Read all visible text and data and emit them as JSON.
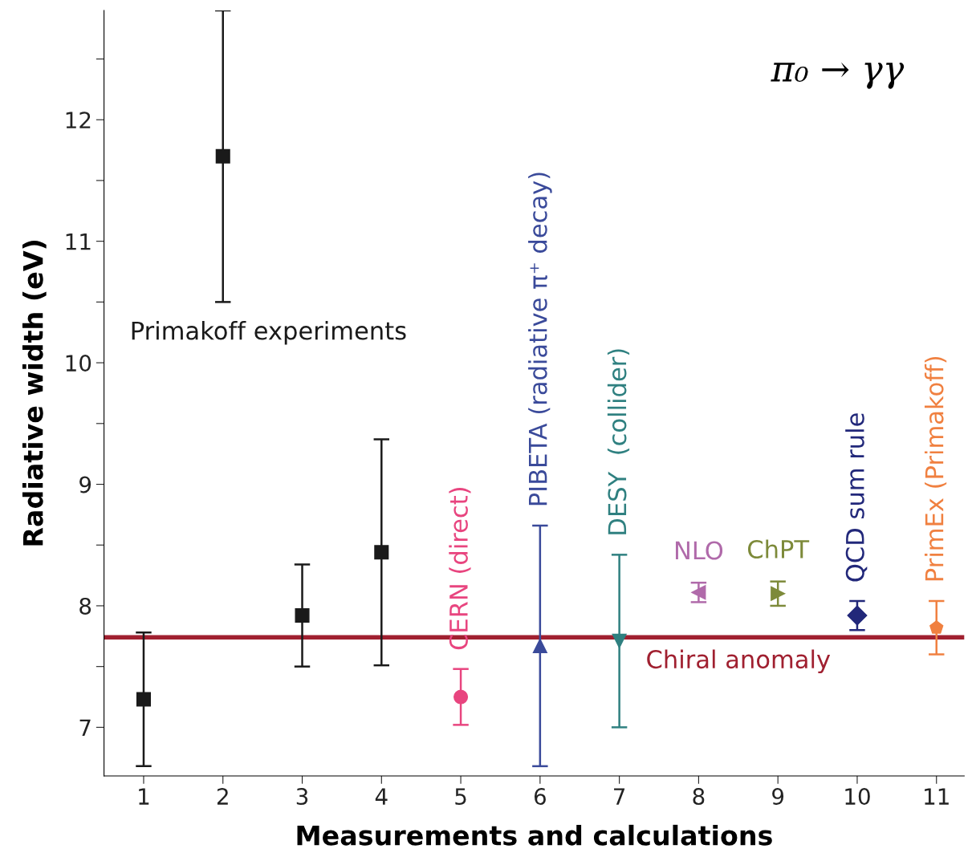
{
  "chart_data": {
    "type": "scatter",
    "xlabel": "Measurements and calculations",
    "ylabel": "Radiative width (eV)",
    "xlim": [
      0.5,
      11.35
    ],
    "xticks": [
      1,
      2,
      3,
      4,
      5,
      6,
      7,
      8,
      9,
      10,
      11
    ],
    "ylim": [
      6.6,
      12.9
    ],
    "yticks": [
      7,
      {
        "value": 7.5,
        "label": null
      },
      8,
      {
        "value": 8.5,
        "label": null
      },
      9,
      {
        "value": 9.5,
        "label": null
      },
      10,
      {
        "value": 10.5,
        "label": null
      },
      11,
      {
        "value": 11.5,
        "label": null
      },
      12,
      {
        "value": 12.5,
        "label": null
      }
    ],
    "grid": false,
    "annotations": [
      "π₀ → γγ"
    ],
    "ref_lines": [
      {
        "axis": "y",
        "value": 7.74,
        "label": "Chiral anomaly",
        "color": "#a02030"
      }
    ],
    "series": [
      {
        "name": "Primakoff experiments",
        "color": "#1a1a1a",
        "marker": "square",
        "x": [
          1,
          2,
          3,
          4
        ],
        "values": [
          7.23,
          11.7,
          7.92,
          8.44
        ],
        "errors": [
          0.55,
          1.2,
          0.42,
          0.93
        ]
      },
      {
        "name": "CERN (direct)",
        "color": "#e8457f",
        "marker": "circle",
        "x": [
          5
        ],
        "values": [
          7.25
        ],
        "errors": [
          0.23
        ]
      },
      {
        "name": "PIBETA (radiative π⁺ decay)",
        "color": "#3a4a9a",
        "marker": "triangle",
        "x": [
          6
        ],
        "values": [
          7.67
        ],
        "errors": [
          0.99
        ]
      },
      {
        "name": "DESY  (collider)",
        "color": "#2f8080",
        "marker": "triangle_down",
        "x": [
          7
        ],
        "values": [
          7.71
        ],
        "errors": [
          0.71
        ]
      },
      {
        "name": "NLO",
        "color": "#b06aaa",
        "marker": "triangle_left",
        "x": [
          8
        ],
        "values": [
          8.11
        ],
        "errors": [
          0.08
        ]
      },
      {
        "name": "ChPT",
        "color": "#7d8a3a",
        "marker": "triangle_right",
        "x": [
          9
        ],
        "values": [
          8.1
        ],
        "errors": [
          0.1
        ]
      },
      {
        "name": "QCD sum rule",
        "color": "#22287a",
        "marker": "diamond",
        "x": [
          10
        ],
        "values": [
          7.92
        ],
        "errors": [
          0.12
        ]
      },
      {
        "name": "PrimEx (Primakoff)",
        "color": "#f08040",
        "x": [
          11
        ],
        "values": [
          7.82
        ],
        "errors": [
          0.22
        ]
      }
    ]
  }
}
